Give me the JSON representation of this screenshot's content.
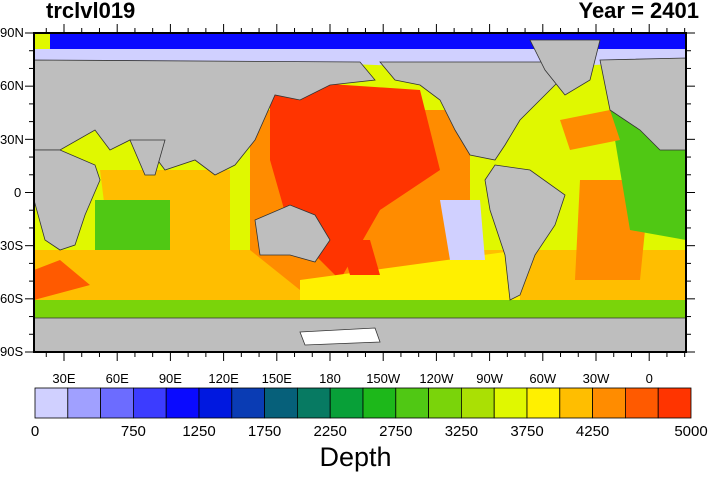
{
  "title_left": "trclvl019",
  "title_right": "Year = 2401",
  "lat_labels": [
    "90N",
    "60N",
    "30N",
    "0",
    "30S",
    "60S",
    "90S"
  ],
  "lon_labels": [
    "30E",
    "60E",
    "90E",
    "120E",
    "150E",
    "180",
    "150W",
    "120W",
    "90W",
    "60W",
    "30W",
    "0"
  ],
  "colorbar": {
    "label": "Depth",
    "tick_labels": [
      "0",
      "750",
      "1250",
      "1750",
      "2250",
      "2750",
      "3250",
      "3750",
      "4250",
      "5000"
    ],
    "levels": [
      0,
      250,
      500,
      750,
      1000,
      1250,
      1500,
      1750,
      2000,
      2250,
      2500,
      2750,
      3000,
      3250,
      3500,
      3750,
      4000,
      4250,
      4500,
      4750,
      5000
    ],
    "colors": [
      "#d0d0ff",
      "#a0a0ff",
      "#6c6cff",
      "#3c3cff",
      "#0a0aff",
      "#0018e0",
      "#0a3cb4",
      "#06607a",
      "#077a62",
      "#08a038",
      "#1db81a",
      "#50c814",
      "#7ad40a",
      "#aae004",
      "#e0f800",
      "#fff000",
      "#ffbe00",
      "#ff8c00",
      "#ff5a00",
      "#ff3400"
    ]
  },
  "land_color": "#bebebe"
}
